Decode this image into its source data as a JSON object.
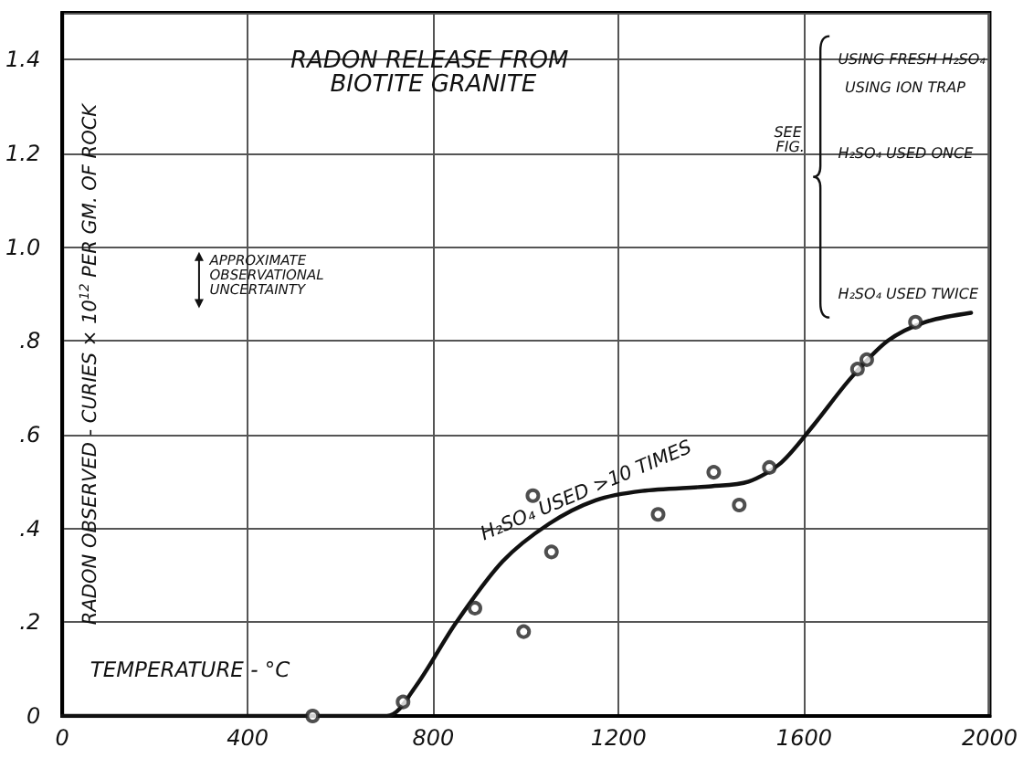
{
  "chart_data": {
    "type": "scatter",
    "title": "RADON RELEASE FROM BIOTITE GRANITE",
    "xlabel": "TEMPERATURE - °C",
    "ylabel": "RADON OBSERVED - CURIES × 10$^{12}$ PER GM. OF ROCK",
    "xlim": [
      0,
      2000
    ],
    "ylim": [
      0,
      1.5
    ],
    "xticks": [
      0,
      400,
      800,
      1200,
      1600,
      2000
    ],
    "yticks": [
      0,
      {
        "value": 0.2,
        "label": ".2"
      },
      {
        "value": 0.4,
        "label": ".4"
      },
      {
        "value": 0.6,
        "label": ".6"
      },
      {
        "value": 0.8,
        "label": ".8"
      },
      {
        "value": 1.0,
        "label": "1.0"
      },
      {
        "value": 1.2,
        "label": "1.2"
      },
      {
        "value": 1.4,
        "label": "1.4"
      }
    ],
    "grid": true,
    "marker": "circle",
    "series": [
      {
        "color": "#222222",
        "x": [
          540,
          735,
          890,
          995,
          1015,
          1055,
          1285,
          1405,
          1460,
          1525,
          1715,
          1735,
          1840
        ],
        "values": [
          0,
          0.03,
          0.23,
          0.18,
          0.47,
          0.35,
          0.43,
          0.52,
          0.45,
          0.53,
          0.74,
          0.76,
          0.84
        ]
      },
      {
        "type": "line",
        "color": "#111111",
        "marker": "none",
        "line_style": "solid",
        "x": [
          0,
          700,
          760,
          850,
          950,
          1050,
          1150,
          1250,
          1400,
          1480,
          1550,
          1620,
          1700,
          1780,
          1860,
          1960
        ],
        "values": [
          0,
          0,
          0.06,
          0.2,
          0.33,
          0.41,
          0.46,
          0.48,
          0.49,
          0.5,
          0.54,
          0.62,
          0.72,
          0.8,
          0.84,
          0.86
        ]
      }
    ],
    "annotations": [
      "APPROXIMATE OBSERVATIONAL UNCERTAINTY",
      "SEE FIG.",
      "USING FRESH H₂SO₄",
      "USING ION TRAP",
      "H₂SO₄ USED ONCE",
      "H₂SO₄ USED TWICE",
      "H₂SO₄ USED >10 TIMES"
    ]
  }
}
